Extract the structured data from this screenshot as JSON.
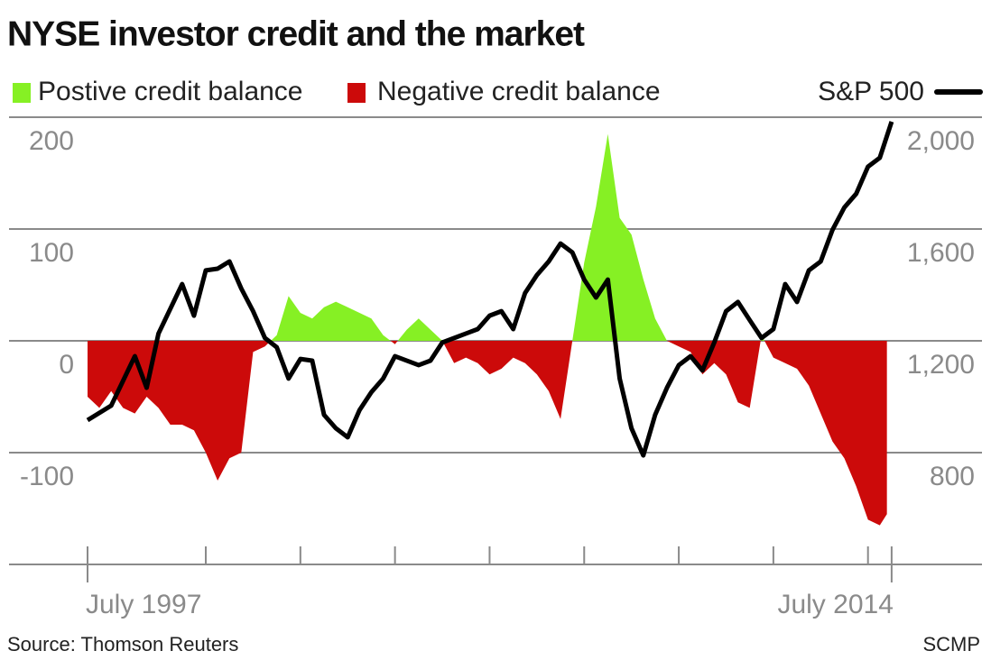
{
  "chart_data": {
    "type": "area-line",
    "title": "NYSE investor credit and the market",
    "source": "Source: Thomson Reuters",
    "credit": "SCMP",
    "xlim": [
      1995.84,
      2016.41
    ],
    "xticks": [
      {
        "value": 1997.5,
        "label": "July 1997"
      },
      {
        "value": 2000,
        "label": null
      },
      {
        "value": 2002,
        "label": null
      },
      {
        "value": 2004,
        "label": null
      },
      {
        "value": 2006,
        "label": null
      },
      {
        "value": 2008,
        "label": null
      },
      {
        "value": 2010,
        "label": null
      },
      {
        "value": 2012,
        "label": null
      },
      {
        "value": 2014,
        "label": null
      },
      {
        "value": 2014.5,
        "label": "July 2014"
      }
    ],
    "ylim": [
      -200,
      200
    ],
    "yticks": [
      -100,
      0,
      100,
      200
    ],
    "y2lim": [
      400,
      2000
    ],
    "y2ticks": [
      800,
      {
        "value": 1200,
        "label": "1,200"
      },
      {
        "value": 1600,
        "label": "1,600"
      },
      {
        "value": 2000,
        "label": "2,000"
      }
    ],
    "grid": true,
    "legend": "top",
    "series": [
      {
        "name": "Postive credit balance",
        "color": "#86f024",
        "sign": "positive",
        "kind": "area",
        "x": [
          1997.5,
          1997.75,
          1998,
          1998.25,
          1998.5,
          1998.75,
          1999,
          1999.25,
          1999.5,
          1999.75,
          2000,
          2000.25,
          2000.5,
          2000.75,
          2001,
          2001.25,
          2001.5,
          2001.75,
          2002,
          2002.25,
          2002.5,
          2002.75,
          2003,
          2003.25,
          2003.5,
          2003.75,
          2004,
          2004.25,
          2004.5,
          2004.75,
          2005,
          2005.25,
          2005.5,
          2005.75,
          2006,
          2006.25,
          2006.5,
          2006.75,
          2007,
          2007.25,
          2007.5,
          2007.75,
          2008,
          2008.25,
          2008.5,
          2008.75,
          2009,
          2009.25,
          2009.5,
          2009.75,
          2010,
          2010.25,
          2010.5,
          2010.75,
          2011,
          2011.25,
          2011.5,
          2011.75,
          2012,
          2012.25,
          2012.5,
          2012.75,
          2013,
          2013.25,
          2013.5,
          2013.75,
          2014,
          2014.25,
          2014.4
        ],
        "values": [
          -50,
          -60,
          -45,
          -60,
          -65,
          -50,
          -60,
          -75,
          -75,
          -80,
          -100,
          -125,
          -105,
          -100,
          -10,
          -5,
          5,
          40,
          25,
          20,
          30,
          35,
          30,
          25,
          20,
          5,
          -3,
          10,
          20,
          10,
          0,
          -20,
          -15,
          -20,
          -30,
          -25,
          -15,
          -20,
          -30,
          -45,
          -70,
          0,
          70,
          120,
          185,
          110,
          95,
          55,
          20,
          0,
          -5,
          -10,
          -30,
          -20,
          -30,
          -55,
          -60,
          5,
          -15,
          -20,
          -25,
          -40,
          -65,
          -90,
          -105,
          -130,
          -160,
          -165,
          -155
        ]
      },
      {
        "name": "Negative credit balance",
        "color": "#cc0a0a",
        "sign": "negative",
        "kind": "legend-only"
      },
      {
        "name": "S&P 500",
        "color": "#000000",
        "axis": "y2",
        "kind": "line",
        "x": [
          1997.5,
          1998,
          1998.5,
          1998.75,
          1999,
          1999.5,
          1999.75,
          2000,
          2000.25,
          2000.5,
          2000.75,
          2001,
          2001.25,
          2001.5,
          2001.75,
          2002,
          2002.25,
          2002.5,
          2002.75,
          2003,
          2003.25,
          2003.5,
          2003.75,
          2004,
          2004.5,
          2004.75,
          2005,
          2005.5,
          2005.75,
          2006,
          2006.25,
          2006.5,
          2006.75,
          2007,
          2007.25,
          2007.5,
          2007.75,
          2008,
          2008.25,
          2008.5,
          2008.75,
          2009,
          2009.25,
          2009.5,
          2009.75,
          2010,
          2010.25,
          2010.5,
          2010.75,
          2011,
          2011.25,
          2011.5,
          2011.75,
          2012,
          2012.25,
          2012.5,
          2012.75,
          2013,
          2013.25,
          2013.5,
          2013.75,
          2014,
          2014.25,
          2014.5
        ],
        "values": [
          916,
          968,
          1145,
          1032,
          1226,
          1403,
          1290,
          1452,
          1458,
          1484,
          1387,
          1306,
          1210,
          1177,
          1065,
          1135,
          1129,
          935,
          887,
          855,
          952,
          1016,
          1065,
          1145,
          1113,
          1129,
          1194,
          1226,
          1242,
          1290,
          1306,
          1242,
          1371,
          1435,
          1484,
          1548,
          1516,
          1419,
          1355,
          1419,
          1065,
          887,
          790,
          935,
          1032,
          1113,
          1145,
          1094,
          1194,
          1306,
          1339,
          1274,
          1210,
          1242,
          1403,
          1339,
          1452,
          1484,
          1597,
          1677,
          1726,
          1823,
          1855,
          1984
        ]
      }
    ]
  }
}
